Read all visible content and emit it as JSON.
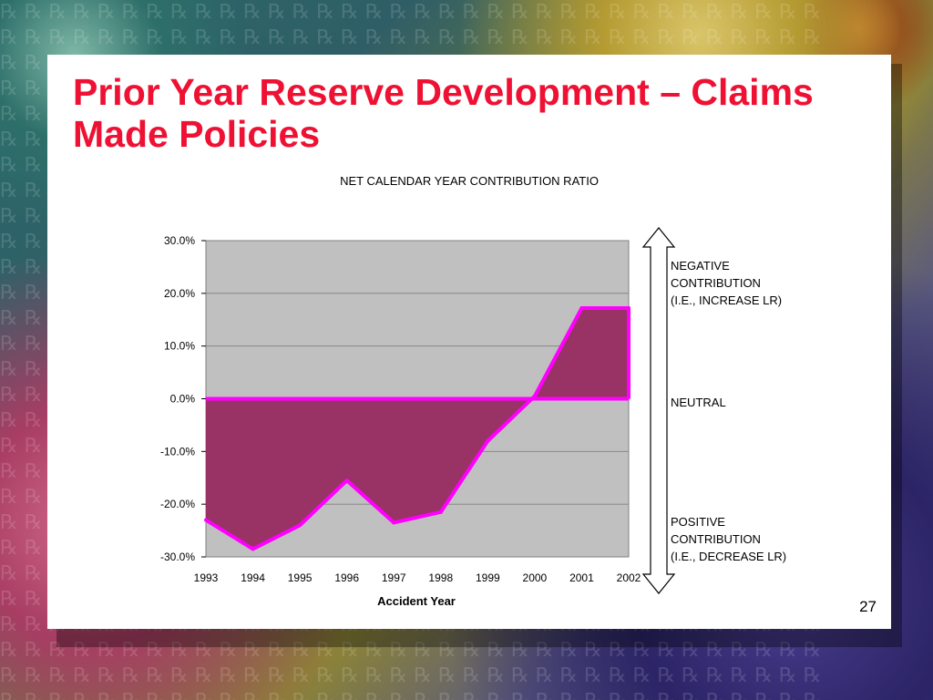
{
  "slide": {
    "title": "Prior Year Reserve Development – Claims Made Policies",
    "page_number": "27"
  },
  "annotations": {
    "negative": [
      "NEGATIVE",
      "CONTRIBUTION",
      "(I.E., INCREASE LR)"
    ],
    "neutral": "NEUTRAL",
    "positive": [
      "POSITIVE",
      "CONTRIBUTION",
      "(I.E., DECREASE LR)"
    ]
  },
  "colors": {
    "title": "#ee1133",
    "area_fill": "#993366",
    "line": "#ff00ff",
    "plot_bg": "#c0c0c0"
  },
  "chart_data": {
    "type": "area",
    "title": "NET CALENDAR YEAR CONTRIBUTION RATIO",
    "xlabel": "Accident Year",
    "ylabel": "",
    "categories": [
      "1993",
      "1994",
      "1995",
      "1996",
      "1997",
      "1998",
      "1999",
      "2000",
      "2001",
      "2002"
    ],
    "series": [
      {
        "values": [
          -23.0,
          -28.5,
          -24.0,
          -15.5,
          -23.5,
          -21.5,
          -8.0,
          0.5,
          17.2,
          17.2
        ]
      }
    ],
    "ylim": [
      -30,
      30
    ],
    "yticks": [
      30,
      20,
      10,
      0,
      -10,
      -20,
      -30
    ],
    "ytick_labels": [
      "30.0%",
      "20.0%",
      "10.0%",
      "0.0%",
      "-10.0%",
      "-20.0%",
      "-30.0%"
    ],
    "grid": true,
    "legend": "none"
  }
}
